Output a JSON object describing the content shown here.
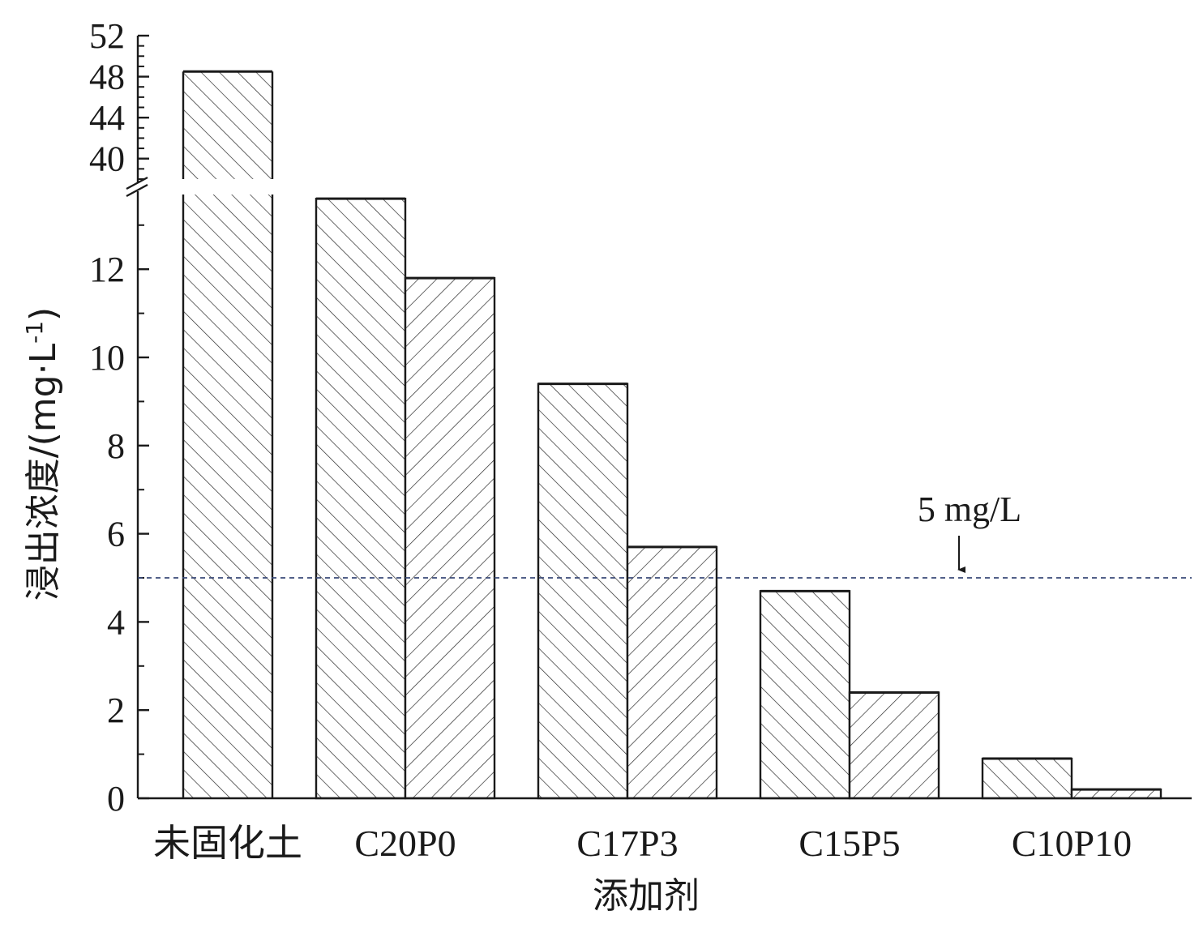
{
  "chart_data": {
    "type": "bar",
    "categories": [
      "未固化土",
      "C20P0",
      "C17P3",
      "C15P5",
      "C10P10"
    ],
    "series": [
      {
        "values": [
          48.5,
          13.6,
          9.4,
          4.7,
          0.9
        ]
      },
      {
        "values": [
          null,
          11.8,
          5.7,
          2.4,
          0.2
        ]
      }
    ],
    "xlabel": "添加剂",
    "ylabel": "浸出浓度/(mg·L",
    "ylabel_sup": "-1",
    "ylabel_close": ")",
    "y_axis": {
      "broken": true,
      "lower_range": [
        0,
        14
      ],
      "lower_ticks": [
        "0",
        "2",
        "4",
        "6",
        "8",
        "10",
        "12"
      ],
      "upper_range": [
        38,
        52
      ],
      "upper_ticks": [
        "40",
        "44",
        "48",
        "52"
      ]
    },
    "reference_line": {
      "value": 5,
      "label": "5 mg/L",
      "style": "dashed"
    },
    "grid": false,
    "legend": "none"
  }
}
